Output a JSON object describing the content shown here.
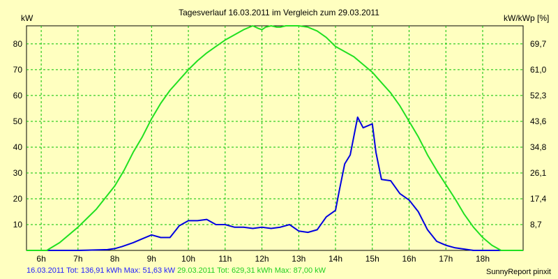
{
  "chart_data": {
    "type": "line",
    "title": "Tagesverlauf 16.03.2011 im Vergleich zum 29.03.2011",
    "ylabel_left": "kW",
    "ylabel_right": "kW/kWp [%]",
    "x_ticks": [
      "6h",
      "7h",
      "8h",
      "9h",
      "10h",
      "11h",
      "12h",
      "13h",
      "14h",
      "15h",
      "16h",
      "17h",
      "18h"
    ],
    "x_tick_values": [
      6,
      7,
      8,
      9,
      10,
      11,
      12,
      13,
      14,
      15,
      16,
      17,
      18
    ],
    "xlim": [
      5.6,
      19.1
    ],
    "ylim": [
      0,
      87
    ],
    "y_ticks_left": [
      "10",
      "20",
      "30",
      "40",
      "50",
      "60",
      "70",
      "80"
    ],
    "y_tick_values_left": [
      10,
      20,
      30,
      40,
      50,
      60,
      70,
      80
    ],
    "y_ticks_right": [
      "8,7",
      "17,4",
      "26,1",
      "34,8",
      "43,6",
      "52,3",
      "61,0",
      "69,7"
    ],
    "grid": true,
    "series": [
      {
        "name": "16.03.2011",
        "color": "#0000e0",
        "x": [
          5.6,
          7.0,
          7.8,
          8.0,
          8.2,
          8.5,
          8.75,
          9.0,
          9.25,
          9.5,
          9.75,
          10.0,
          10.25,
          10.5,
          10.75,
          11.0,
          11.25,
          11.5,
          11.75,
          12.0,
          12.25,
          12.5,
          12.75,
          13.0,
          13.25,
          13.5,
          13.75,
          14.0,
          14.1,
          14.25,
          14.4,
          14.6,
          14.75,
          15.0,
          15.1,
          15.25,
          15.5,
          15.75,
          16.0,
          16.25,
          16.5,
          16.75,
          17.0,
          17.25,
          17.5,
          17.75,
          18.0,
          18.25,
          18.5,
          19.1
        ],
        "y": [
          0,
          0,
          0.3,
          0.7,
          1.5,
          3,
          4.5,
          6,
          5,
          5,
          9.5,
          11.5,
          11.5,
          12,
          10,
          10,
          9,
          9,
          8.5,
          9,
          8.5,
          9,
          10,
          7.5,
          7,
          8,
          13,
          15.5,
          23,
          33.5,
          37,
          51.6,
          47.5,
          49,
          38,
          27.5,
          27,
          22,
          19.5,
          15,
          8,
          3.5,
          2,
          1,
          0.5,
          0,
          0,
          0,
          0,
          0
        ]
      },
      {
        "name": "29.03.2011",
        "color": "#20e020",
        "x": [
          5.6,
          6.15,
          6.5,
          7.0,
          7.5,
          8.0,
          8.25,
          8.5,
          8.75,
          9.0,
          9.25,
          9.5,
          9.75,
          10.0,
          10.25,
          10.5,
          10.75,
          11.0,
          11.25,
          11.5,
          11.75,
          11.9,
          12.0,
          12.1,
          12.25,
          12.4,
          12.5,
          12.65,
          12.75,
          13.0,
          13.25,
          13.5,
          13.75,
          14.0,
          14.25,
          14.5,
          14.75,
          15.0,
          15.25,
          15.5,
          15.75,
          16.0,
          16.25,
          16.5,
          16.75,
          17.0,
          17.25,
          17.5,
          17.75,
          18.0,
          18.25,
          18.5,
          19.1
        ],
        "y": [
          0,
          0,
          3,
          9,
          16,
          25,
          31,
          38,
          44,
          51,
          57,
          62,
          66,
          70,
          73.5,
          76.5,
          79,
          81.5,
          83.5,
          85.5,
          87,
          86,
          85.5,
          86.5,
          87,
          86.5,
          86.5,
          87,
          87,
          87,
          86.5,
          85,
          82.5,
          79,
          77,
          75,
          72,
          69,
          65,
          61,
          56,
          50,
          44,
          37,
          31,
          25.5,
          20,
          14,
          9,
          5,
          2,
          0,
          0
        ]
      }
    ]
  },
  "legend": {
    "s1_text": "16.03.2011 Tot: 136,91 kWh Max: 51,63 kW",
    "s2_text": "29.03.2011 Tot: 629,31 kWh Max: 87,00 kW"
  },
  "footer": {
    "brand": "SunnyReport pinxit"
  }
}
